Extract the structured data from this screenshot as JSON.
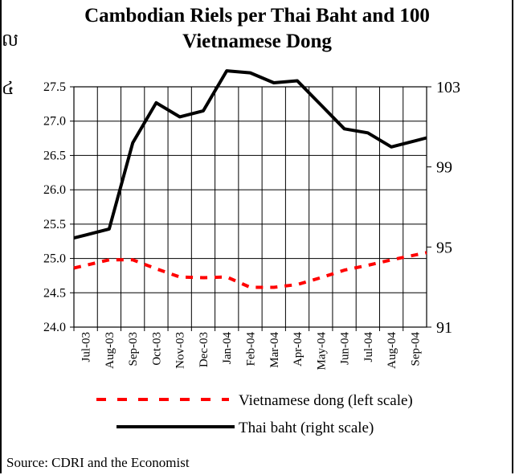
{
  "page": {
    "edge_glyphs": [
      "ល",
      "៤"
    ],
    "source": "Source: CDRI and the Economist"
  },
  "chart_data": {
    "type": "line",
    "title": "Cambodian Riels per Thai Baht and 100 Vietnamese Dong",
    "categories": [
      "Jul-03",
      "Aug-03",
      "Sep-03",
      "Oct-03",
      "Nov-03",
      "Dec-03",
      "Jan-04",
      "Feb-04",
      "Mar-04",
      "Apr-04",
      "May-04",
      "Jun-04",
      "Jul-04",
      "Aug-04",
      "Sep-04"
    ],
    "y_left": {
      "ylim": [
        24.0,
        27.5
      ],
      "ticks": [
        "24.0",
        "24.5",
        "25.0",
        "25.5",
        "26.0",
        "26.5",
        "27.0",
        "27.5"
      ]
    },
    "y_right": {
      "ylim": [
        91,
        103
      ],
      "ticks": [
        "91",
        "95",
        "99",
        "103"
      ]
    },
    "grid": true,
    "legend_position": "bottom",
    "series": [
      {
        "name": "Vietnamese dong (left scale)",
        "axis": "left",
        "color": "#ff0000",
        "style": "dashed",
        "values": [
          24.9,
          24.98,
          24.98,
          24.85,
          24.73,
          24.72,
          24.73,
          24.58,
          24.58,
          24.62,
          24.72,
          24.83,
          24.9,
          24.98,
          25.05
        ]
      },
      {
        "name": "Thai baht (right scale)",
        "axis": "right",
        "color": "#000000",
        "style": "solid",
        "values": [
          95.6,
          95.9,
          100.2,
          102.2,
          101.5,
          101.8,
          103.8,
          103.7,
          103.2,
          103.3,
          102.1,
          100.9,
          100.7,
          100.0,
          100.3
        ]
      }
    ]
  }
}
